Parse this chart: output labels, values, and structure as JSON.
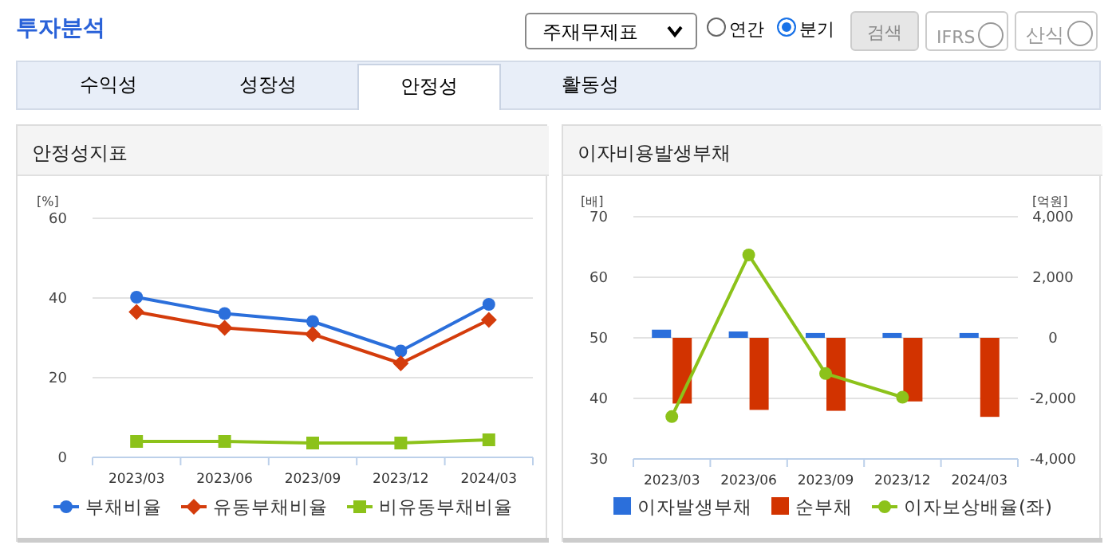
{
  "chart_data": [
    {
      "type": "other",
      "title": "투자분석",
      "annotations": [
        "주재무제표",
        "연간",
        "분기",
        "검색",
        "IFRS",
        "산식",
        "수익성",
        "성장성",
        "안정성",
        "활동성"
      ]
    },
    {
      "type": "line",
      "title": "안정성지표",
      "ylabel": "[%]",
      "categories": [
        "2023/03",
        "2023/06",
        "2023/09",
        "2023/12",
        "2024/03"
      ],
      "ylim": [
        0,
        60
      ],
      "yticks": [
        0,
        20,
        40,
        60
      ],
      "grid": "y",
      "legend": "bottom",
      "line_style": "solid",
      "series": [
        {
          "name": "부채비율",
          "color": "#2b6fdb",
          "marker": "circle",
          "values": [
            40.2,
            36.1,
            34.1,
            26.7,
            38.4
          ]
        },
        {
          "name": "유동부채비율",
          "color": "#d43c0c",
          "marker": "diamond",
          "values": [
            36.5,
            32.5,
            30.9,
            23.6,
            34.5
          ]
        },
        {
          "name": "비유동부채비율",
          "color": "#8cc21a",
          "marker": "square",
          "values": [
            4.0,
            4.0,
            3.6,
            3.6,
            4.4
          ]
        }
      ]
    },
    {
      "type": "bar",
      "title": "이자비용발생부채",
      "ylabel": "[배]",
      "y2label": "[억원]",
      "categories": [
        "2023/03",
        "2023/06",
        "2023/09",
        "2023/12",
        "2024/03"
      ],
      "ylim": [
        30,
        70
      ],
      "yticks": [
        30,
        40,
        50,
        60,
        70
      ],
      "y2lim": [
        -4000,
        4000
      ],
      "y2ticks": [
        {
          "value": -4000,
          "label": "-4,000"
        },
        {
          "value": -2000,
          "label": "-2,000"
        },
        0,
        {
          "value": 2000,
          "label": "2,000"
        },
        {
          "value": 4000,
          "label": "4,000"
        }
      ],
      "grid": "y",
      "legend": "bottom",
      "series": [
        {
          "name": "이자발생부채",
          "color": "#2b6fdb",
          "axis": "y2",
          "values": [
            270,
            210,
            160,
            160,
            160
          ]
        },
        {
          "name": "순부채",
          "color": "#d23300",
          "axis": "y2",
          "values": [
            -2170,
            -2380,
            -2410,
            -2100,
            -2610
          ]
        },
        {
          "name": "이자보상배율(좌)",
          "type": "line",
          "marker": "circle",
          "color": "#8cc21a",
          "values": [
            37.0,
            63.7,
            44.1,
            40.2,
            null
          ]
        }
      ]
    }
  ]
}
